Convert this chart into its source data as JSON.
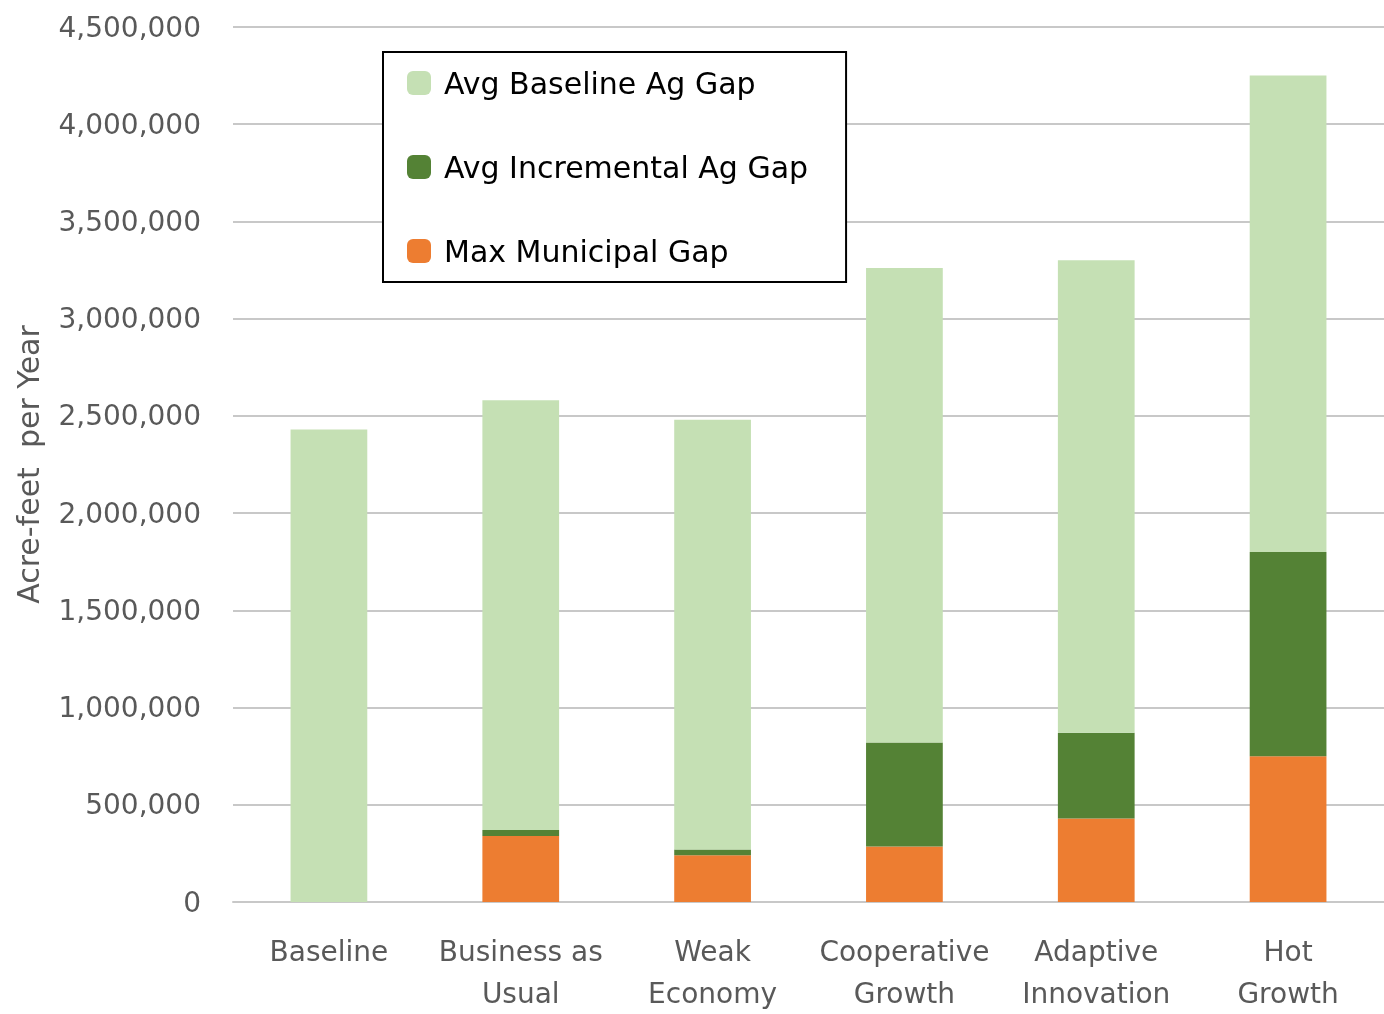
{
  "chart_data": {
    "type": "bar",
    "stacked": true,
    "ylabel": "Acre-feet  per Year",
    "categories": [
      "Baseline",
      "Business as Usual",
      "Weak Economy",
      "Cooperative Growth",
      "Adaptive Innovation",
      "Hot Growth"
    ],
    "series": [
      {
        "name": "Max Municipal Gap",
        "color": "#ed7d31",
        "values": [
          0,
          340000,
          240000,
          285000,
          430000,
          750000
        ]
      },
      {
        "name": "Avg Incremental Ag Gap",
        "color": "#548235",
        "values": [
          0,
          30000,
          30000,
          535000,
          440000,
          1050000
        ]
      },
      {
        "name": "Avg Baseline Ag Gap",
        "color": "#c5e0b4",
        "values": [
          2430000,
          2210000,
          2210000,
          2440000,
          2430000,
          2450000
        ]
      }
    ],
    "ylim": [
      0,
      4500000
    ],
    "yticks": [
      0,
      {
        "value": 500000,
        "label": "500,000"
      },
      {
        "value": 1000000,
        "label": "1,000,000"
      },
      {
        "value": 1500000,
        "label": "1,500,000"
      },
      {
        "value": 2000000,
        "label": "2,000,000"
      },
      {
        "value": 2500000,
        "label": "2,500,000"
      },
      {
        "value": 3000000,
        "label": "3,000,000"
      },
      {
        "value": 3500000,
        "label": "3,500,000"
      },
      {
        "value": 4000000,
        "label": "4,000,000"
      },
      {
        "value": 4500000,
        "label": "4,500,000"
      }
    ],
    "grid": "y",
    "legend": "top left"
  }
}
